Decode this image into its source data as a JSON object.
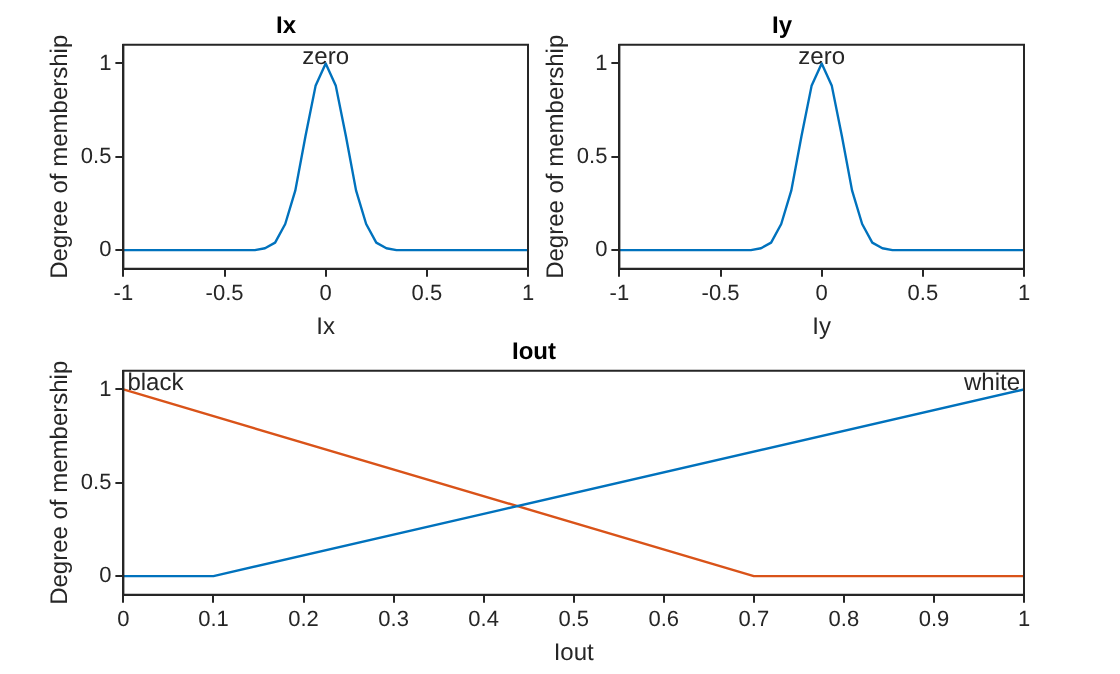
{
  "chart_data": [
    {
      "type": "line",
      "title": "Ix",
      "xlabel": "Ix",
      "ylabel": "Degree of membership",
      "xlim": [
        -1,
        1
      ],
      "xticks": [
        -1,
        -0.5,
        0,
        0.5,
        1
      ],
      "ylim": [
        -0.1,
        1.1
      ],
      "yticks": [
        0,
        0.5,
        1
      ],
      "grid": false,
      "legend": false,
      "marker": "none",
      "line_style": "solid",
      "series": [
        {
          "name": "zero",
          "color": "#0072bd",
          "x": [
            -1,
            -0.4,
            -0.35,
            -0.3,
            -0.25,
            -0.2,
            -0.15,
            -0.1,
            -0.05,
            0,
            0.05,
            0.1,
            0.15,
            0.2,
            0.25,
            0.3,
            0.35,
            0.4,
            1
          ],
          "values": [
            0,
            0,
            0,
            0.01,
            0.04,
            0.14,
            0.32,
            0.61,
            0.88,
            1,
            0.88,
            0.61,
            0.32,
            0.14,
            0.04,
            0.01,
            0,
            0,
            0
          ]
        }
      ]
    },
    {
      "type": "line",
      "title": "Iy",
      "xlabel": "Iy",
      "ylabel": "Degree of membership",
      "xlim": [
        -1,
        1
      ],
      "xticks": [
        -1,
        -0.5,
        0,
        0.5,
        1
      ],
      "ylim": [
        -0.1,
        1.1
      ],
      "yticks": [
        0,
        0.5,
        1
      ],
      "grid": false,
      "legend": false,
      "marker": "none",
      "line_style": "solid",
      "series": [
        {
          "name": "zero",
          "color": "#0072bd",
          "x": [
            -1,
            -0.4,
            -0.35,
            -0.3,
            -0.25,
            -0.2,
            -0.15,
            -0.1,
            -0.05,
            0,
            0.05,
            0.1,
            0.15,
            0.2,
            0.25,
            0.3,
            0.35,
            0.4,
            1
          ],
          "values": [
            0,
            0,
            0,
            0.01,
            0.04,
            0.14,
            0.32,
            0.61,
            0.88,
            1,
            0.88,
            0.61,
            0.32,
            0.14,
            0.04,
            0.01,
            0,
            0,
            0
          ]
        }
      ]
    },
    {
      "type": "line",
      "title": "Iout",
      "xlabel": "Iout",
      "ylabel": "Degree of membership",
      "xlim": [
        0,
        1
      ],
      "xticks": [
        0,
        0.1,
        0.2,
        0.3,
        0.4,
        0.5,
        0.6,
        0.7,
        0.8,
        0.9,
        1
      ],
      "ylim": [
        -0.1,
        1.1
      ],
      "yticks": [
        0,
        0.5,
        1
      ],
      "grid": false,
      "legend": false,
      "marker": "none",
      "line_style": "solid",
      "series": [
        {
          "name": "white",
          "color": "#0072bd",
          "x": [
            0,
            0.1,
            1
          ],
          "values": [
            0,
            0,
            1
          ]
        },
        {
          "name": "black",
          "color": "#d95319",
          "x": [
            0,
            0.7,
            1
          ],
          "values": [
            1,
            0,
            0
          ]
        }
      ]
    }
  ]
}
